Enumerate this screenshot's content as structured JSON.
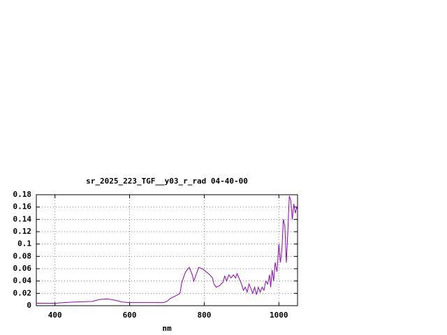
{
  "chart_data": {
    "type": "line",
    "title": "sr_2025_223_TGF__y03_r_rad 04-40-00",
    "x_label": "nm",
    "x": [
      350,
      400,
      450,
      500,
      520,
      540,
      560,
      580,
      600,
      650,
      690,
      700,
      710,
      730,
      735,
      740,
      750,
      760,
      768,
      772,
      778,
      785,
      795,
      805,
      815,
      822,
      826,
      832,
      840,
      850,
      855,
      860,
      866,
      872,
      878,
      884,
      888,
      893,
      900,
      905,
      910,
      915,
      920,
      925,
      930,
      935,
      940,
      945,
      950,
      955,
      960,
      965,
      970,
      975,
      978,
      982,
      986,
      990,
      995,
      1000,
      1004,
      1008,
      1012,
      1016,
      1020,
      1024,
      1028,
      1032,
      1036,
      1040,
      1044,
      1048,
      1050
    ],
    "series": [
      {
        "color": "#9400d3",
        "values": [
          0.004,
          0.004,
          0.006,
          0.007,
          0.01,
          0.011,
          0.009,
          0.006,
          0.005,
          0.005,
          0.005,
          0.007,
          0.012,
          0.018,
          0.02,
          0.038,
          0.055,
          0.062,
          0.05,
          0.04,
          0.05,
          0.062,
          0.06,
          0.055,
          0.05,
          0.045,
          0.035,
          0.03,
          0.032,
          0.038,
          0.048,
          0.04,
          0.05,
          0.045,
          0.05,
          0.045,
          0.052,
          0.045,
          0.035,
          0.025,
          0.03,
          0.022,
          0.035,
          0.028,
          0.02,
          0.03,
          0.018,
          0.03,
          0.022,
          0.03,
          0.025,
          0.04,
          0.035,
          0.05,
          0.03,
          0.058,
          0.04,
          0.07,
          0.055,
          0.1,
          0.07,
          0.09,
          0.14,
          0.13,
          0.07,
          0.12,
          0.178,
          0.17,
          0.14,
          0.165,
          0.15,
          0.16,
          0.155
        ]
      }
    ],
    "xlim": [
      350,
      1050
    ],
    "xticks": [
      400,
      600,
      800,
      1000
    ],
    "ylim": [
      0,
      0.18
    ],
    "yticks": [
      0,
      0.02,
      0.04,
      0.06,
      0.08,
      0.1,
      0.12,
      0.14,
      0.16,
      0.18
    ],
    "grid": true
  }
}
